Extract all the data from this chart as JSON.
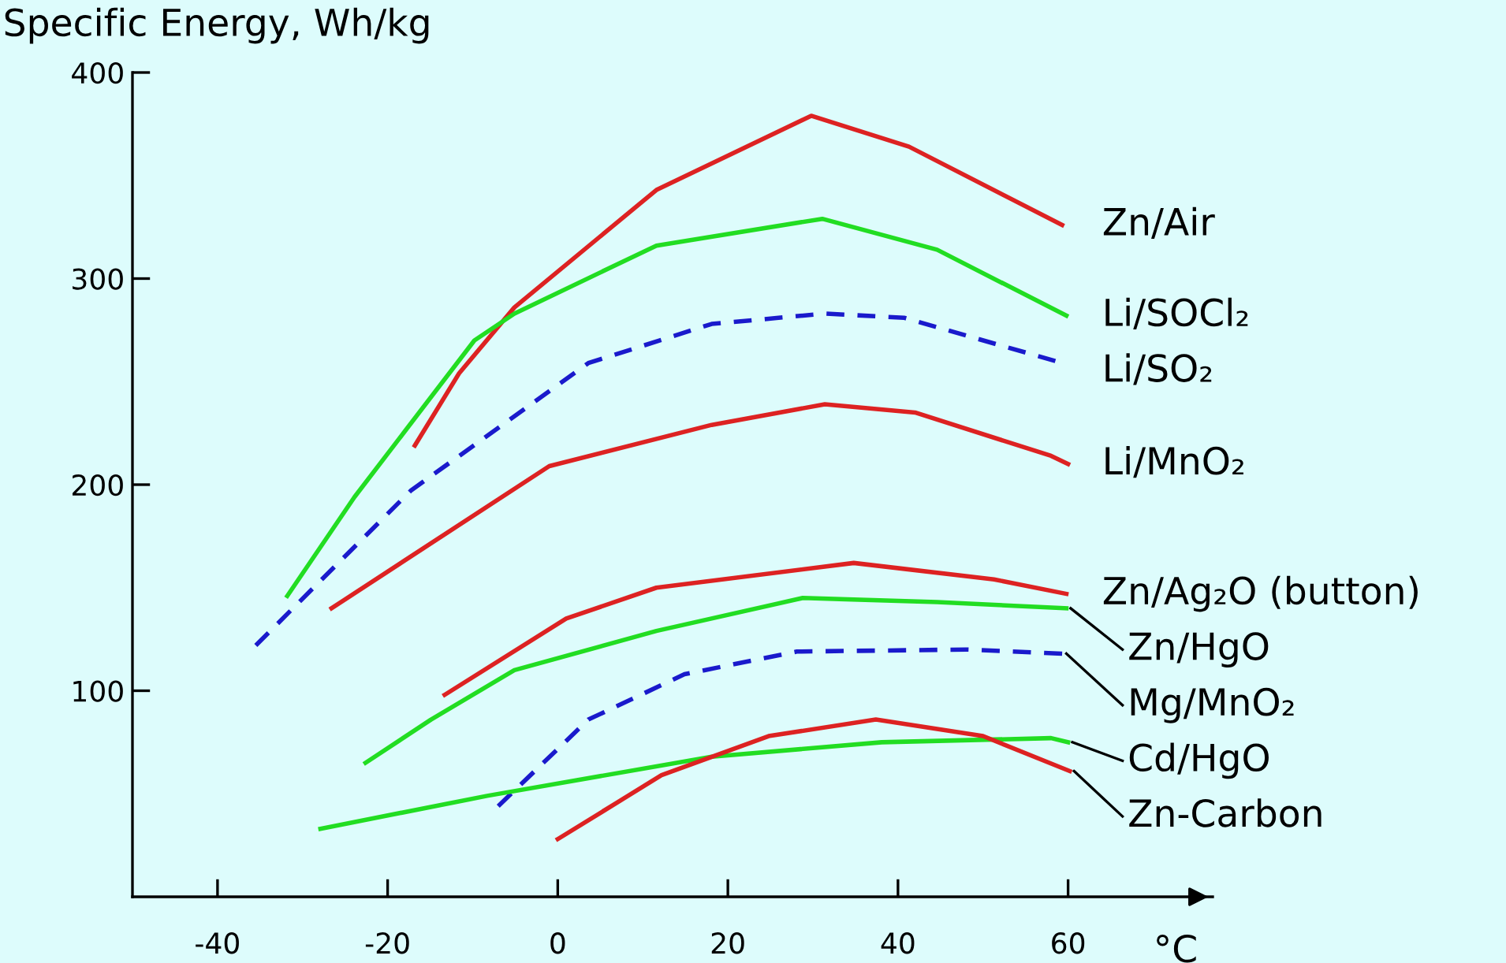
{
  "chart_data": {
    "type": "line",
    "ylabel": "Specific Energy, Wh/kg",
    "xlabel": "°C",
    "xlim": [
      -50,
      77
    ],
    "xticks": [
      -40,
      -20,
      0,
      20,
      40,
      60
    ],
    "ylim": [
      0,
      400
    ],
    "yticks": [
      100,
      200,
      300,
      400
    ],
    "grid": false,
    "legend": false,
    "marker": "none",
    "series": [
      {
        "name": "Zn/Air",
        "color": "#dd2222",
        "line_style": "solid",
        "x": [
          -16.8,
          -11.6,
          -5.1,
          11.6,
          29.8,
          41.3,
          59.3
        ],
        "values": [
          219,
          254,
          286,
          343,
          379,
          364,
          326
        ]
      },
      {
        "name": "Li/SOCl₂",
        "color": "#22dd22",
        "line_style": "solid",
        "x": [
          -31.8,
          -23.9,
          -9.8,
          -5.1,
          11.6,
          31.1,
          44.6,
          59.8
        ],
        "values": [
          146,
          194,
          270,
          283,
          316,
          329,
          314,
          282
        ]
      },
      {
        "name": "Li/SO₂",
        "color": "#1a1acc",
        "line_style": "dashed",
        "x": [
          -35.5,
          -17.3,
          3.6,
          18.1,
          31.4,
          40.7,
          58.5
        ],
        "values": [
          122,
          197,
          259,
          278,
          283,
          281,
          260
        ]
      },
      {
        "name": "Li/MnO₂",
        "color": "#dd2222",
        "line_style": "solid",
        "x": [
          -26.6,
          -1,
          18.1,
          31.4,
          42,
          58,
          60
        ],
        "values": [
          140,
          209,
          229,
          239,
          235,
          214,
          210
        ]
      },
      {
        "name": "Zn/Ag₂O (button)",
        "color": "#dd2222",
        "line_style": "solid",
        "x": [
          -13.3,
          1,
          11.6,
          34.8,
          51.3,
          59.8
        ],
        "values": [
          98,
          135,
          150,
          162,
          154,
          147
        ]
      },
      {
        "name": "Zn/HgO",
        "color": "#22dd22",
        "line_style": "solid",
        "x": [
          -22.6,
          -14.9,
          -5.1,
          11.6,
          28.8,
          44.6,
          59.8
        ],
        "values": [
          65,
          86,
          110,
          129,
          145,
          143,
          140
        ]
      },
      {
        "name": "Mg/MnO₂",
        "color": "#1a1acc",
        "line_style": "dashed",
        "x": [
          -7,
          3.6,
          14.9,
          28.1,
          48,
          59.3
        ],
        "values": [
          44,
          86,
          108,
          119,
          120,
          118
        ]
      },
      {
        "name": "Cd/HgO",
        "color": "#22dd22",
        "line_style": "solid",
        "x": [
          -27.9,
          -8.3,
          18.1,
          38.1,
          58,
          60
        ],
        "values": [
          33,
          49,
          68,
          75,
          77,
          75
        ]
      },
      {
        "name": "Zn-Carbon",
        "color": "#dd2222",
        "line_style": "solid",
        "x": [
          0,
          12.2,
          24.8,
          37.4,
          50,
          60.2
        ],
        "values": [
          28,
          59,
          78,
          86,
          78,
          61
        ]
      }
    ]
  }
}
